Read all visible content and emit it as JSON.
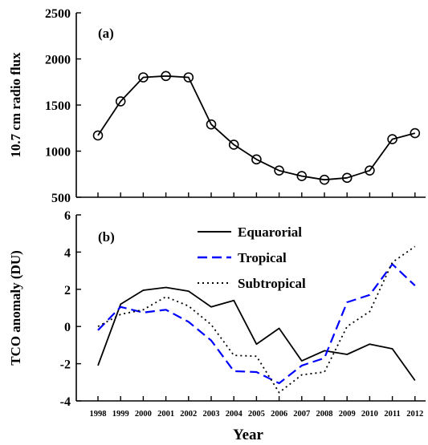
{
  "chart_data": [
    {
      "type": "line",
      "panel_label": "(a)",
      "ylabel": "10.7 cm radio flux",
      "ylim": [
        500,
        2500
      ],
      "yticks": [
        500,
        1000,
        1500,
        2000,
        2500
      ],
      "x": [
        1998,
        1999,
        2000,
        2001,
        2002,
        2003,
        2004,
        2005,
        2006,
        2007,
        2008,
        2009,
        2010,
        2011,
        2012
      ],
      "series": [
        {
          "color": "#000000",
          "marker": "circle",
          "values": [
            1170,
            1540,
            1800,
            1815,
            1800,
            1290,
            1070,
            910,
            790,
            730,
            690,
            710,
            790,
            1130,
            1195
          ]
        }
      ]
    },
    {
      "type": "line",
      "panel_label": "(b)",
      "ylabel": "TCO anomaly (DU)",
      "xlabel": "Year",
      "ylim": [
        -4,
        6
      ],
      "yticks": [
        -4,
        -2,
        0,
        2,
        4,
        6
      ],
      "x": [
        1998,
        1999,
        2000,
        2001,
        2002,
        2003,
        2004,
        2005,
        2006,
        2007,
        2008,
        2009,
        2010,
        2011,
        2012
      ],
      "x_tick_labels": [
        "1998",
        "1999",
        "2000",
        "2001",
        "2002",
        "2003",
        "2004",
        "2005",
        "2006",
        "2007",
        "2008",
        "2009",
        "2010",
        "2011",
        "2012"
      ],
      "legend_position": "top-center",
      "series": [
        {
          "name": "Equarorial",
          "color": "#000000",
          "style": "solid",
          "values": [
            -2.1,
            1.2,
            1.95,
            2.1,
            1.9,
            1.05,
            1.4,
            -0.95,
            -0.1,
            -1.85,
            -1.3,
            -1.5,
            -0.95,
            -1.2,
            -2.9
          ]
        },
        {
          "name": "Tropical",
          "color": "#0000ff",
          "style": "dashed",
          "values": [
            -0.2,
            1.05,
            0.75,
            0.9,
            0.25,
            -0.75,
            -2.4,
            -2.45,
            -3.05,
            -2.1,
            -1.7,
            1.3,
            1.7,
            3.35,
            2.2
          ]
        },
        {
          "name": "Subtropical",
          "color": "#000000",
          "style": "dotted",
          "values": [
            0.0,
            0.65,
            0.9,
            1.6,
            1.1,
            0.1,
            -1.55,
            -1.6,
            -3.55,
            -2.6,
            -2.45,
            0.0,
            0.8,
            3.45,
            4.3
          ]
        }
      ]
    }
  ]
}
